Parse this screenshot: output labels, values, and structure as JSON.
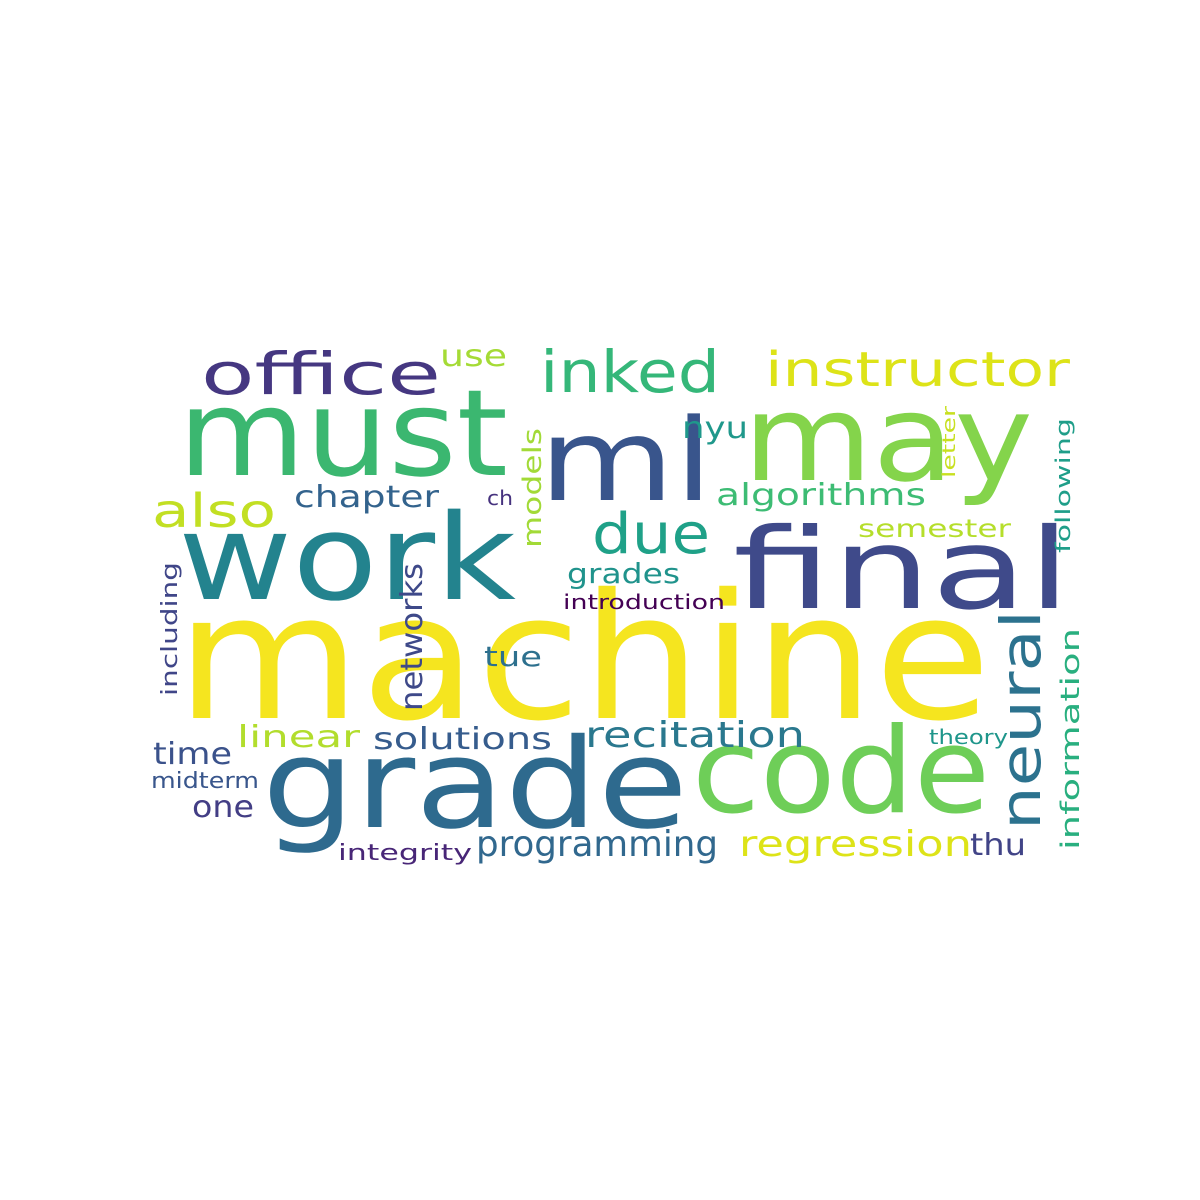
{
  "words": [
    {
      "text": "machine",
      "color": "#f5e51f"
    },
    {
      "text": "grade",
      "color": "#2e6a8e"
    },
    {
      "text": "code",
      "color": "#6ece58"
    },
    {
      "text": "work",
      "color": "#23838e"
    },
    {
      "text": "must",
      "color": "#3bb770"
    },
    {
      "text": "may",
      "color": "#84d44b"
    },
    {
      "text": "ml",
      "color": "#39558c"
    },
    {
      "text": "final",
      "color": "#3f4a8a"
    },
    {
      "text": "neural",
      "color": "#2c728e"
    },
    {
      "text": "office",
      "color": "#453781"
    },
    {
      "text": "inked",
      "color": "#35b779"
    },
    {
      "text": "instructor",
      "color": "#dde318"
    },
    {
      "text": "due",
      "color": "#1fa188"
    },
    {
      "text": "also",
      "color": "#c2df23"
    },
    {
      "text": "recitation",
      "color": "#2a788e"
    },
    {
      "text": "programming",
      "color": "#31688e"
    },
    {
      "text": "regression",
      "color": "#dde318"
    },
    {
      "text": "solutions",
      "color": "#365c8d"
    },
    {
      "text": "chapter",
      "color": "#33638d"
    },
    {
      "text": "algorithms",
      "color": "#3dbc74"
    },
    {
      "text": "use",
      "color": "#a5db36"
    },
    {
      "text": "networks",
      "color": "#3e4989"
    },
    {
      "text": "models",
      "color": "#a2da37"
    },
    {
      "text": "information",
      "color": "#29af7f"
    },
    {
      "text": "linear",
      "color": "#b2dd2d"
    },
    {
      "text": "time",
      "color": "#3b528b"
    },
    {
      "text": "one",
      "color": "#433e85"
    },
    {
      "text": "grades",
      "color": "#20938c"
    },
    {
      "text": "semester",
      "color": "#b5de2b"
    },
    {
      "text": "nyu",
      "color": "#1f988b"
    },
    {
      "text": "tue",
      "color": "#2d708e"
    },
    {
      "text": "thu",
      "color": "#414487"
    },
    {
      "text": "including",
      "color": "#404688"
    },
    {
      "text": "midterm",
      "color": "#39568c"
    },
    {
      "text": "integrity",
      "color": "#482677"
    },
    {
      "text": "introduction",
      "color": "#440154"
    },
    {
      "text": "following",
      "color": "#1f9e89"
    },
    {
      "text": "letter",
      "color": "#c8e020"
    },
    {
      "text": "theory",
      "color": "#1f968b"
    },
    {
      "text": "ch",
      "color": "#46327e"
    }
  ]
}
